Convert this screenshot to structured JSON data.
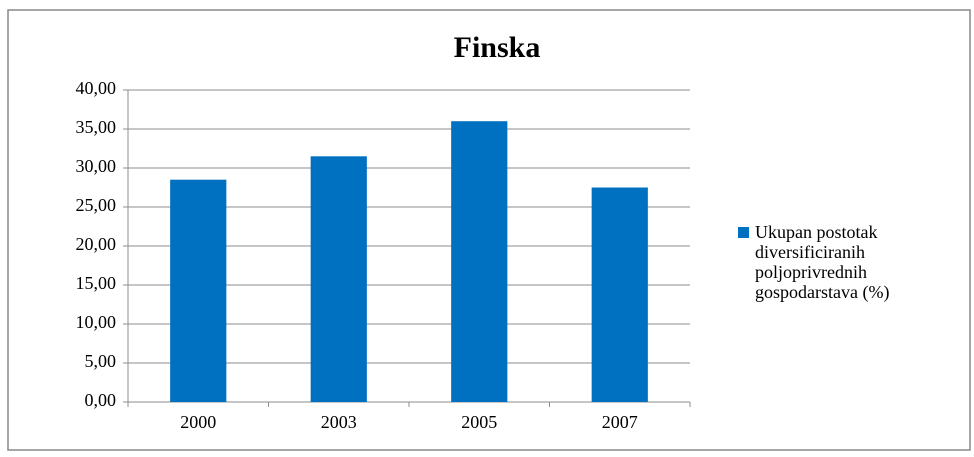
{
  "chart_data": {
    "type": "bar",
    "title": "Finska",
    "categories": [
      "2000",
      "2003",
      "2005",
      "2007"
    ],
    "series": [
      {
        "name": "Ukupan postotak diversificiranih poljoprivrednih gospodarstava (%)",
        "color": "#0070c0",
        "values": [
          28.5,
          31.5,
          36,
          27.5
        ]
      }
    ],
    "ylim": [
      0,
      40
    ],
    "yticks": [
      {
        "value": 0,
        "label": "0,00"
      },
      {
        "value": 5,
        "label": "5,00"
      },
      {
        "value": 10,
        "label": "10,00"
      },
      {
        "value": 15,
        "label": "15,00"
      },
      {
        "value": 20,
        "label": "20,00"
      },
      {
        "value": 25,
        "label": "25,00"
      },
      {
        "value": 30,
        "label": "30,00"
      },
      {
        "value": 35,
        "label": "35,00"
      },
      {
        "value": 40,
        "label": "40,00"
      }
    ],
    "grid": true,
    "legend": "right"
  }
}
